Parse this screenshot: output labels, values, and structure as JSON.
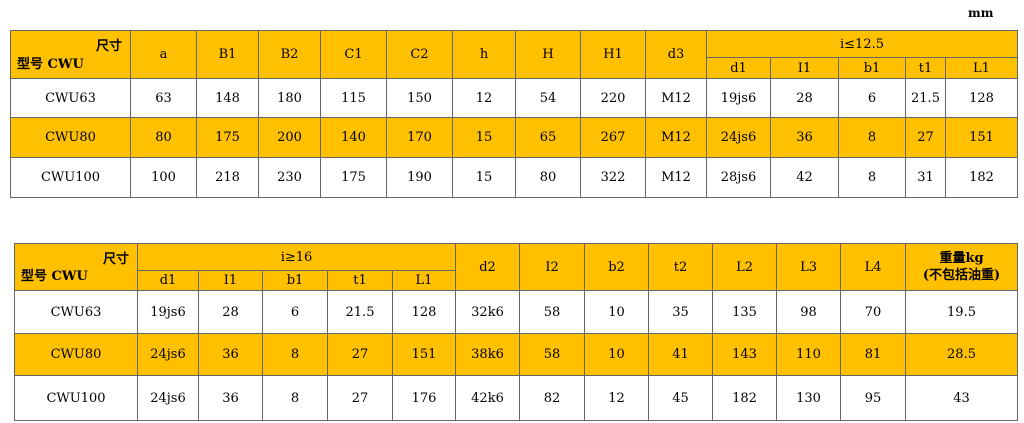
{
  "unit": "mm",
  "corner": {
    "top": "尺寸",
    "bottom": "型号 CWU"
  },
  "table1": {
    "headers": [
      "a",
      "B1",
      "B2",
      "C1",
      "C2",
      "h",
      "H",
      "H1",
      "d3"
    ],
    "group": "i≤12.5",
    "sub_headers": [
      "d1",
      "I1",
      "b1",
      "t1",
      "L1"
    ],
    "rows": [
      [
        "CWU63",
        "63",
        "148",
        "180",
        "115",
        "150",
        "12",
        "54",
        "220",
        "M12",
        "19js6",
        "28",
        "6",
        "21.5",
        "128"
      ],
      [
        "CWU80",
        "80",
        "175",
        "200",
        "140",
        "170",
        "15",
        "65",
        "267",
        "M12",
        "24js6",
        "36",
        "8",
        "27",
        "151"
      ],
      [
        "CWU100",
        "100",
        "218",
        "230",
        "175",
        "190",
        "15",
        "80",
        "322",
        "M12",
        "28js6",
        "42",
        "8",
        "31",
        "182"
      ]
    ]
  },
  "table2": {
    "group": "i≥16",
    "sub_headers": [
      "d1",
      "I1",
      "b1",
      "t1",
      "L1"
    ],
    "headers": [
      "d2",
      "I2",
      "b2",
      "t2",
      "L2",
      "L3",
      "L4"
    ],
    "weight_header": "重量kg",
    "weight_note": "(不包括油重)",
    "rows": [
      [
        "CWU63",
        "19js6",
        "28",
        "6",
        "21.5",
        "128",
        "32k6",
        "58",
        "10",
        "35",
        "135",
        "98",
        "70",
        "19.5"
      ],
      [
        "CWU80",
        "24js6",
        "36",
        "8",
        "27",
        "151",
        "38k6",
        "58",
        "10",
        "41",
        "143",
        "110",
        "81",
        "28.5"
      ],
      [
        "CWU100",
        "24js6",
        "36",
        "8",
        "27",
        "176",
        "42k6",
        "82",
        "12",
        "45",
        "182",
        "130",
        "95",
        "43"
      ]
    ]
  },
  "colors": {
    "highlight": "#FFC000",
    "border": "#666666"
  }
}
